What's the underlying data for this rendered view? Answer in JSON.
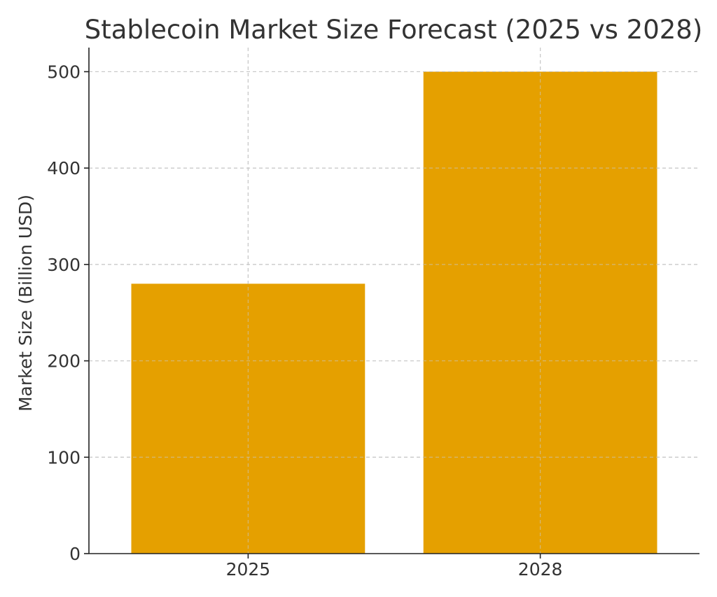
{
  "chart_data": {
    "type": "bar",
    "title": "Stablecoin Market Size Forecast (2025 vs 2028)",
    "xlabel": "",
    "ylabel": "Market Size (Billion USD)",
    "categories": [
      "2025",
      "2028"
    ],
    "values": [
      280,
      500
    ],
    "ylim": [
      0,
      525
    ],
    "yticks": [
      0,
      100,
      200,
      300,
      400,
      500
    ],
    "grid": true,
    "bar_color": "#E5A000"
  }
}
